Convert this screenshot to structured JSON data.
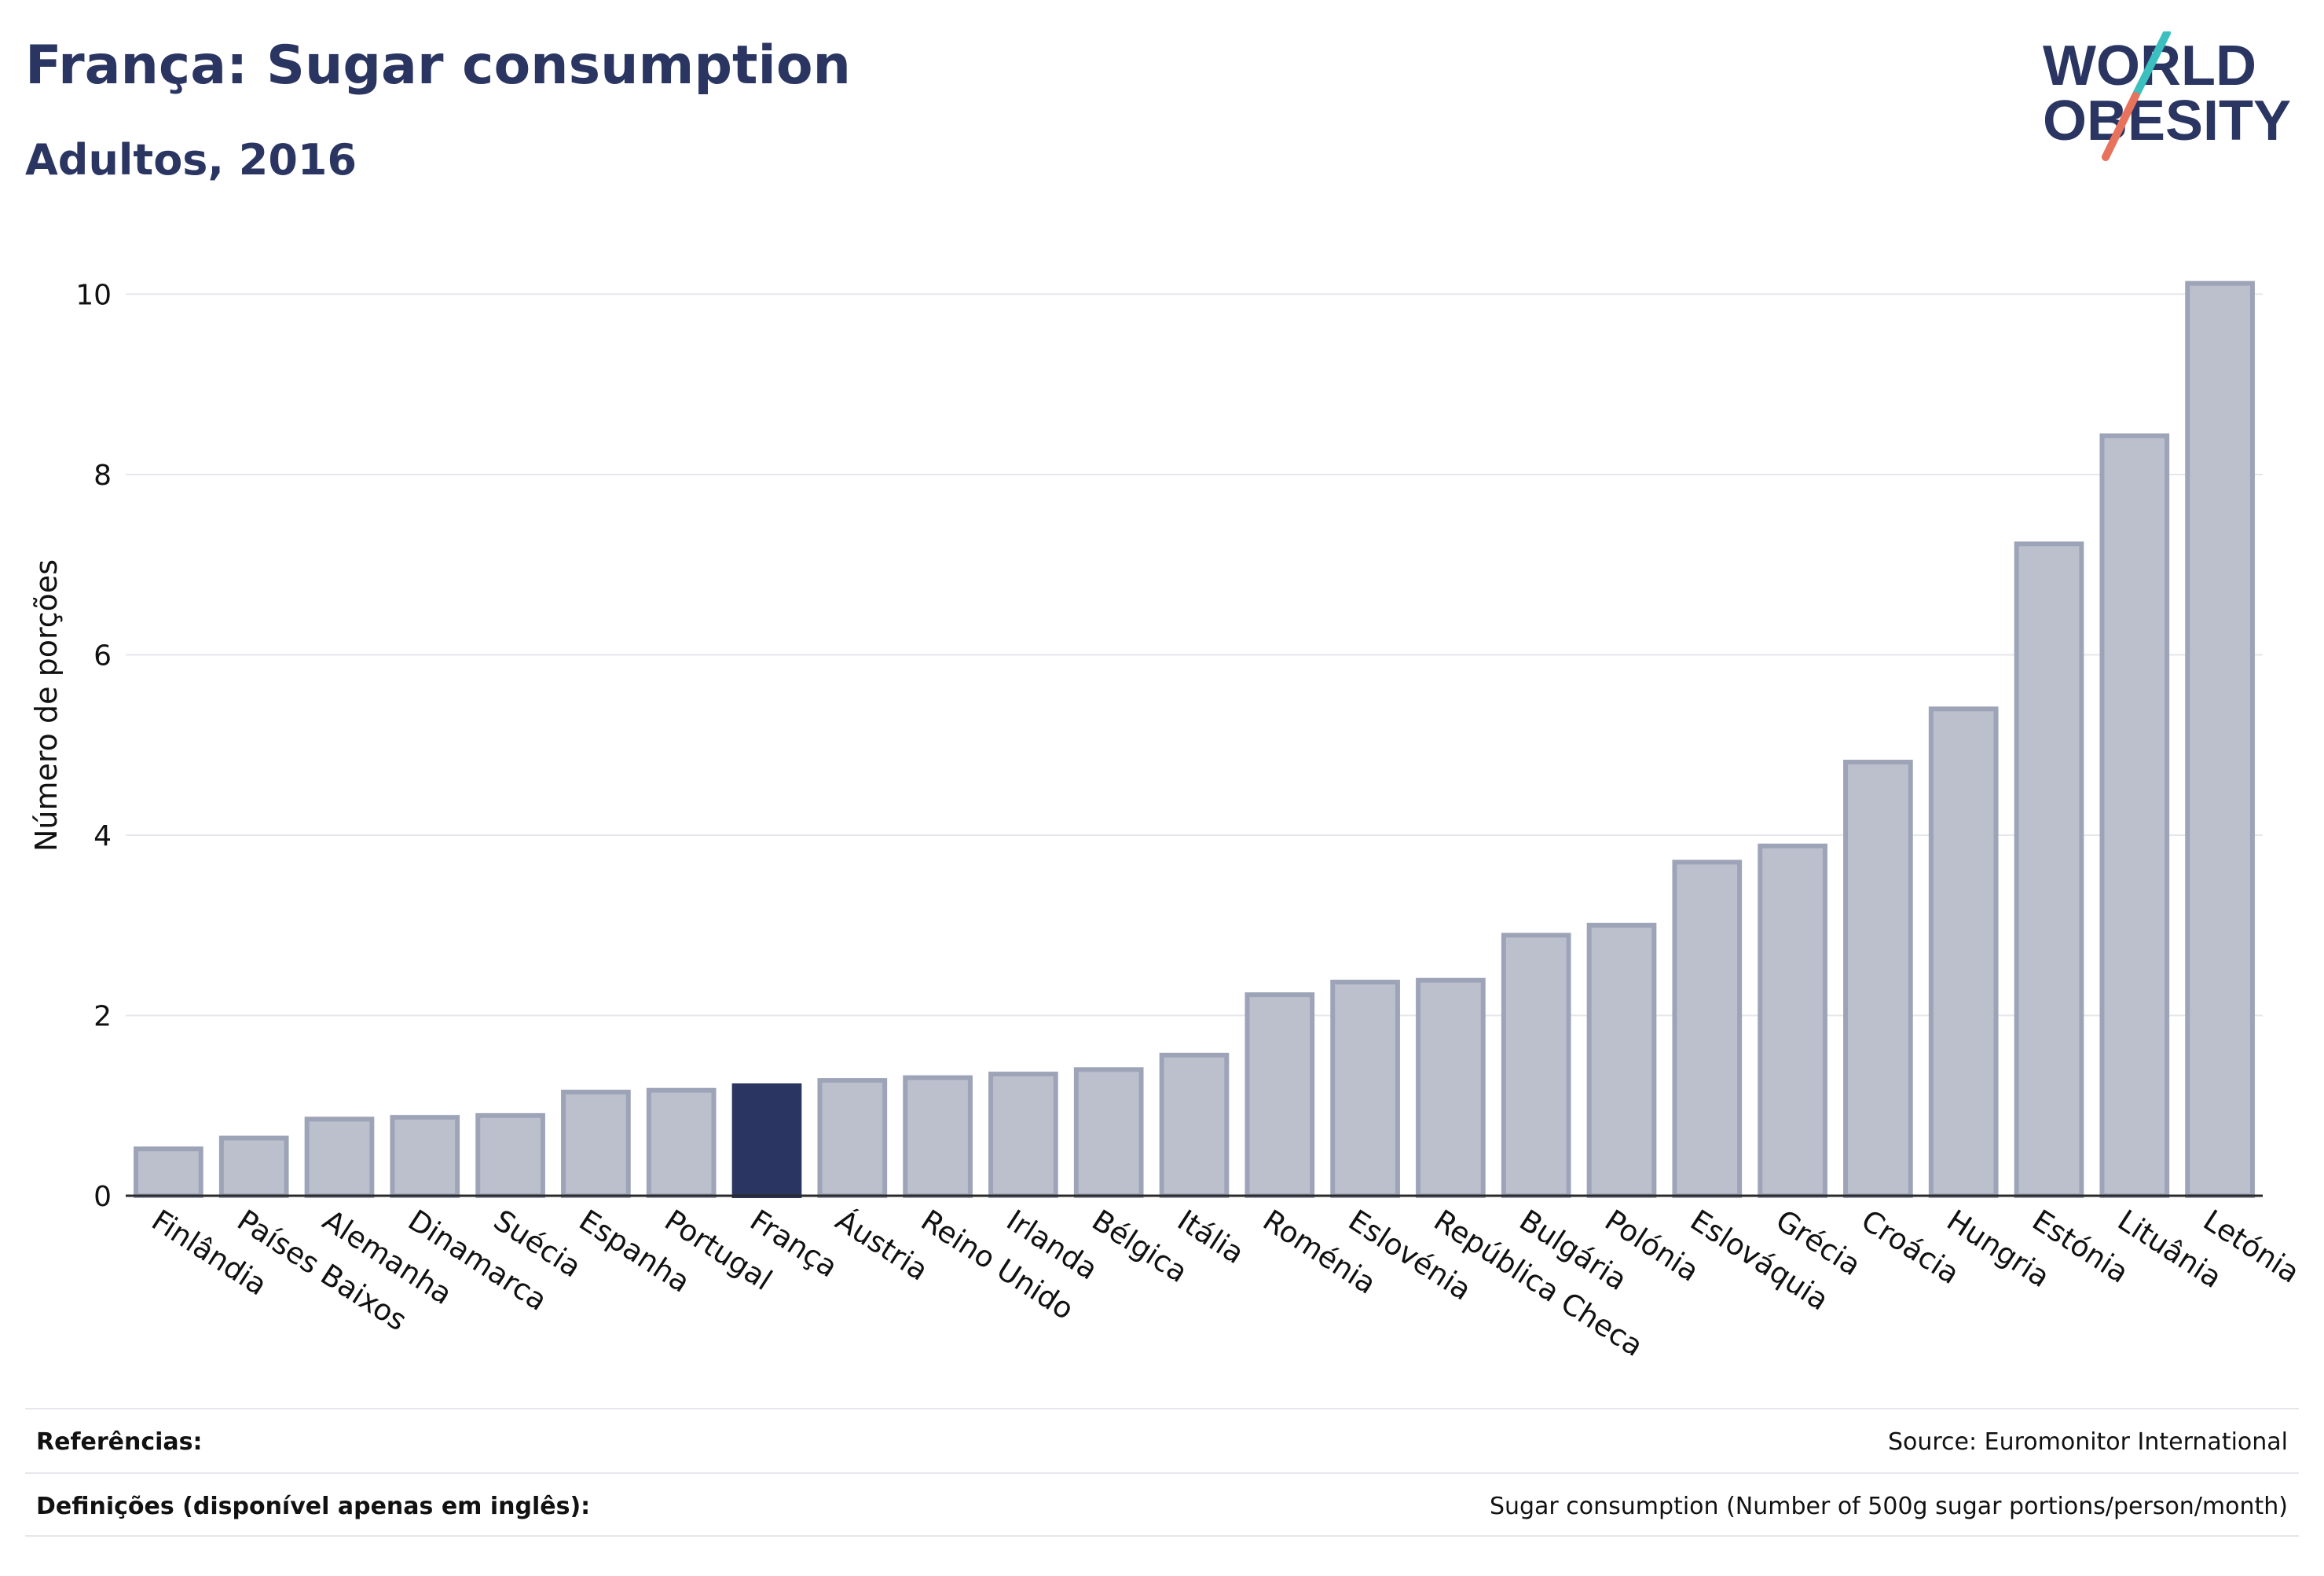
{
  "header": {
    "title": "França: Sugar consumption",
    "subtitle": "Adultos, 2016"
  },
  "logo": {
    "line1": "WORLD",
    "line2": "OBESITY"
  },
  "colors": {
    "highlight": "#2a3561",
    "bar": "#bcc0cd",
    "bar_stroke": "#9ea4b8",
    "grid": "#e6e7eb"
  },
  "chart_data": {
    "type": "bar",
    "ylabel": "Número de porções",
    "ylim": [
      0,
      10.3
    ],
    "yticks": [
      0,
      2,
      4,
      6,
      8,
      10
    ],
    "highlight": "França",
    "categories": [
      "Finlândia",
      "Países Baixos",
      "Alemanha",
      "Dinamarca",
      "Suécia",
      "Espanha",
      "Portugal",
      "França",
      "Áustria",
      "Reino Unido",
      "Irlanda",
      "Bélgica",
      "Itália",
      "Roménia",
      "Eslovénia",
      "República Checa",
      "Bulgária",
      "Polónia",
      "Eslováquia",
      "Grécia",
      "Croácia",
      "Hungria",
      "Estónia",
      "Lituânia",
      "Letónia"
    ],
    "values": [
      0.52,
      0.64,
      0.85,
      0.87,
      0.89,
      1.15,
      1.17,
      1.22,
      1.28,
      1.31,
      1.35,
      1.4,
      1.56,
      2.23,
      2.37,
      2.39,
      2.89,
      3.0,
      3.7,
      3.88,
      4.81,
      5.4,
      7.23,
      8.43,
      10.12
    ]
  },
  "footer": {
    "references_label": "Referências:",
    "references_value": "Source: Euromonitor International",
    "definitions_label": "Definições (disponível apenas em inglês):",
    "definitions_value": "Sugar consumption (Number of 500g sugar portions/person/month)"
  }
}
